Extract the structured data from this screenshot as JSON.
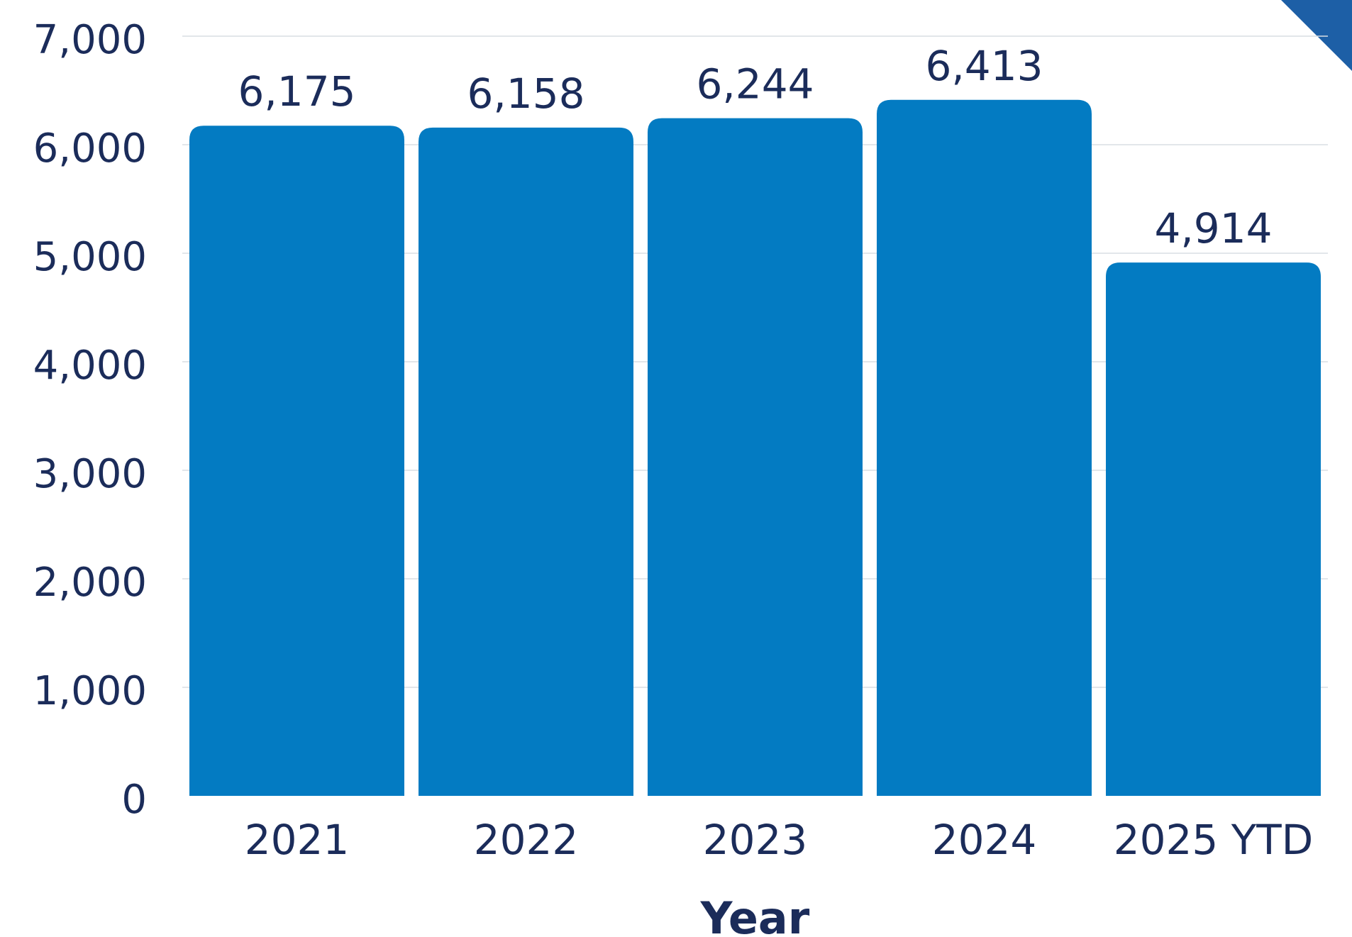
{
  "chart_data": {
    "type": "bar",
    "categories": [
      "2021",
      "2022",
      "2023",
      "2024",
      "2025 YTD"
    ],
    "series": [
      {
        "values": [
          6175,
          6158,
          6244,
          6413,
          4914
        ]
      }
    ],
    "data_labels": [
      "6,175",
      "6,158",
      "6,244",
      "6,413",
      "4,914"
    ],
    "title": "",
    "xlabel": "Year",
    "ylabel": "",
    "ylim": [
      0,
      7000
    ],
    "yticks": [
      0,
      1000,
      2000,
      3000,
      4000,
      5000,
      6000,
      7000
    ],
    "ytick_labels": [
      "0",
      "1,000",
      "2,000",
      "3,000",
      "4,000",
      "5,000",
      "6,000",
      "7,000"
    ],
    "grid": true,
    "legend": "none",
    "colors": {
      "bar": "#037bc2",
      "text": "#1b2c5a",
      "grid": "#d9dde3",
      "corner_accent": "#1d5fa6"
    }
  }
}
